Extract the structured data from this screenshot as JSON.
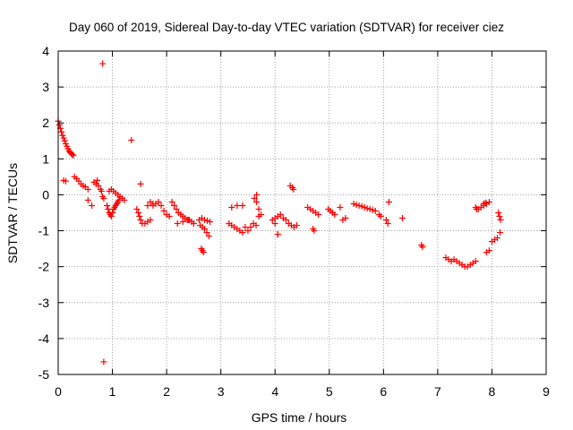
{
  "chart_data": {
    "type": "scatter",
    "title": "Day 060 of 2019, Sidereal Day-to-day VTEC variation (SDTVAR) for receiver ciez",
    "xlabel": "GPS time / hours",
    "ylabel": "SDTVAR / TECUs",
    "xlim": [
      0,
      9
    ],
    "ylim": [
      -5,
      4
    ],
    "xticks": [
      "0",
      "1",
      "2",
      "3",
      "4",
      "5",
      "6",
      "7",
      "8",
      "9"
    ],
    "yticks": [
      "-5",
      "-4",
      "-3",
      "-2",
      "-1",
      "0",
      "1",
      "2",
      "3",
      "4"
    ],
    "grid": true,
    "marker": "+",
    "marker_color": "#ff0000",
    "series": [
      {
        "name": "SDTVAR",
        "x": [
          0.0,
          0.02,
          0.04,
          0.06,
          0.08,
          0.1,
          0.12,
          0.14,
          0.16,
          0.18,
          0.2,
          0.22,
          0.24,
          0.26,
          0.28,
          0.1,
          0.14,
          0.3,
          0.34,
          0.38,
          0.42,
          0.46,
          0.5,
          0.55,
          0.62,
          0.66,
          0.7,
          0.74,
          0.72,
          0.78,
          0.8,
          0.82,
          0.84,
          0.9,
          0.92,
          0.94,
          0.96,
          0.98,
          1.0,
          1.02,
          1.04,
          1.06,
          1.08,
          1.1,
          1.12,
          0.94,
          0.98,
          1.02,
          1.06,
          1.1,
          1.14,
          1.18,
          1.22,
          1.45,
          1.48,
          1.5,
          1.52,
          1.55,
          1.6,
          1.65,
          1.7,
          1.75,
          1.8,
          1.85,
          1.9,
          1.95,
          2.0,
          2.05,
          1.65,
          1.7,
          1.75,
          2.1,
          2.14,
          2.18,
          2.22,
          2.26,
          2.3,
          2.34,
          2.38,
          2.42,
          2.46,
          2.5,
          2.2,
          2.3,
          2.4,
          2.6,
          2.65,
          2.7,
          2.75,
          2.8,
          2.62,
          2.66,
          2.7,
          2.74,
          2.78,
          2.64,
          2.66,
          2.68,
          3.15,
          3.2,
          3.25,
          3.3,
          3.35,
          3.4,
          3.2,
          3.3,
          3.4,
          3.45,
          3.5,
          3.55,
          3.6,
          3.65,
          3.62,
          3.66,
          3.7,
          3.74,
          3.66,
          3.7,
          3.95,
          4.0,
          4.05,
          4.1,
          4.15,
          4.0,
          4.2,
          4.25,
          4.3,
          4.35,
          4.4,
          4.32,
          4.34,
          4.28,
          4.05,
          4.6,
          4.65,
          4.7,
          4.75,
          4.8,
          4.7,
          4.72,
          4.98,
          5.02,
          5.06,
          5.1,
          5.2,
          5.3,
          5.25,
          5.45,
          5.5,
          5.55,
          5.6,
          5.65,
          5.7,
          5.75,
          5.8,
          5.85,
          5.92,
          5.95,
          6.05,
          6.08,
          6.1,
          6.35,
          6.7,
          6.72,
          7.15,
          7.2,
          7.25,
          7.3,
          7.35,
          7.4,
          7.45,
          7.5,
          7.55,
          7.6,
          7.65,
          7.7,
          7.75,
          7.8,
          7.85,
          7.9,
          7.95,
          8.0,
          8.05,
          8.1,
          8.15,
          7.7,
          7.72,
          7.85,
          7.88,
          7.9,
          7.95,
          8.12,
          8.14,
          8.16,
          0.82,
          0.84,
          1.35,
          1.52,
          0.55,
          4.05
        ],
        "y": [
          2.05,
          1.95,
          1.85,
          1.75,
          1.65,
          1.58,
          1.5,
          1.42,
          1.35,
          1.28,
          1.22,
          1.18,
          1.15,
          1.12,
          1.1,
          0.4,
          0.38,
          0.5,
          0.45,
          0.38,
          0.3,
          0.25,
          0.22,
          -0.15,
          -0.3,
          0.35,
          0.3,
          0.25,
          0.4,
          0.15,
          0.1,
          -0.05,
          -0.1,
          -0.3,
          -0.4,
          -0.5,
          -0.55,
          -0.6,
          -0.5,
          -0.4,
          -0.35,
          -0.3,
          -0.25,
          -0.2,
          -0.15,
          0.1,
          0.15,
          0.1,
          0.05,
          0.0,
          -0.05,
          -0.1,
          -0.15,
          -0.4,
          -0.5,
          -0.6,
          -0.7,
          -0.8,
          -0.8,
          -0.75,
          -0.7,
          -0.3,
          -0.25,
          -0.2,
          -0.3,
          -0.45,
          -0.55,
          -0.6,
          -0.3,
          -0.2,
          -0.25,
          -0.2,
          -0.3,
          -0.4,
          -0.5,
          -0.55,
          -0.6,
          -0.65,
          -0.7,
          -0.7,
          -0.75,
          -0.8,
          -0.8,
          -0.75,
          -0.7,
          -0.7,
          -0.65,
          -0.7,
          -0.72,
          -0.75,
          -0.85,
          -0.9,
          -0.95,
          -1.05,
          -1.15,
          -1.5,
          -1.55,
          -1.6,
          -0.8,
          -0.85,
          -0.9,
          -0.95,
          -1.0,
          -1.05,
          -0.35,
          -0.3,
          -0.3,
          -0.9,
          -1.0,
          -0.9,
          -0.8,
          -0.85,
          -0.1,
          -0.2,
          -0.4,
          -0.55,
          0.0,
          -0.6,
          -0.7,
          -0.65,
          -0.6,
          -0.55,
          -0.65,
          -0.8,
          -0.7,
          -0.8,
          -0.85,
          -0.9,
          -0.85,
          0.2,
          0.15,
          0.25,
          -1.1,
          -0.35,
          -0.4,
          -0.45,
          -0.5,
          -0.55,
          -0.95,
          -1.0,
          -0.4,
          -0.45,
          -0.5,
          -0.55,
          -0.35,
          -0.65,
          -0.7,
          -0.25,
          -0.28,
          -0.3,
          -0.32,
          -0.35,
          -0.38,
          -0.4,
          -0.42,
          -0.45,
          -0.55,
          -0.6,
          -0.7,
          -0.8,
          -0.2,
          -0.65,
          -1.4,
          -1.45,
          -1.75,
          -1.8,
          -1.85,
          -1.8,
          -1.85,
          -1.9,
          -1.95,
          -2.0,
          -2.0,
          -1.95,
          -1.9,
          -1.85,
          -0.4,
          -0.35,
          -0.3,
          -0.25,
          -0.2,
          -1.3,
          -1.25,
          -1.2,
          -1.05,
          -0.35,
          -0.4,
          -0.25,
          -0.22,
          -1.6,
          -1.55,
          -0.5,
          -0.6,
          -0.7,
          3.65,
          -4.65,
          1.52,
          0.3,
          0.15,
          -1.1
        ]
      }
    ]
  }
}
